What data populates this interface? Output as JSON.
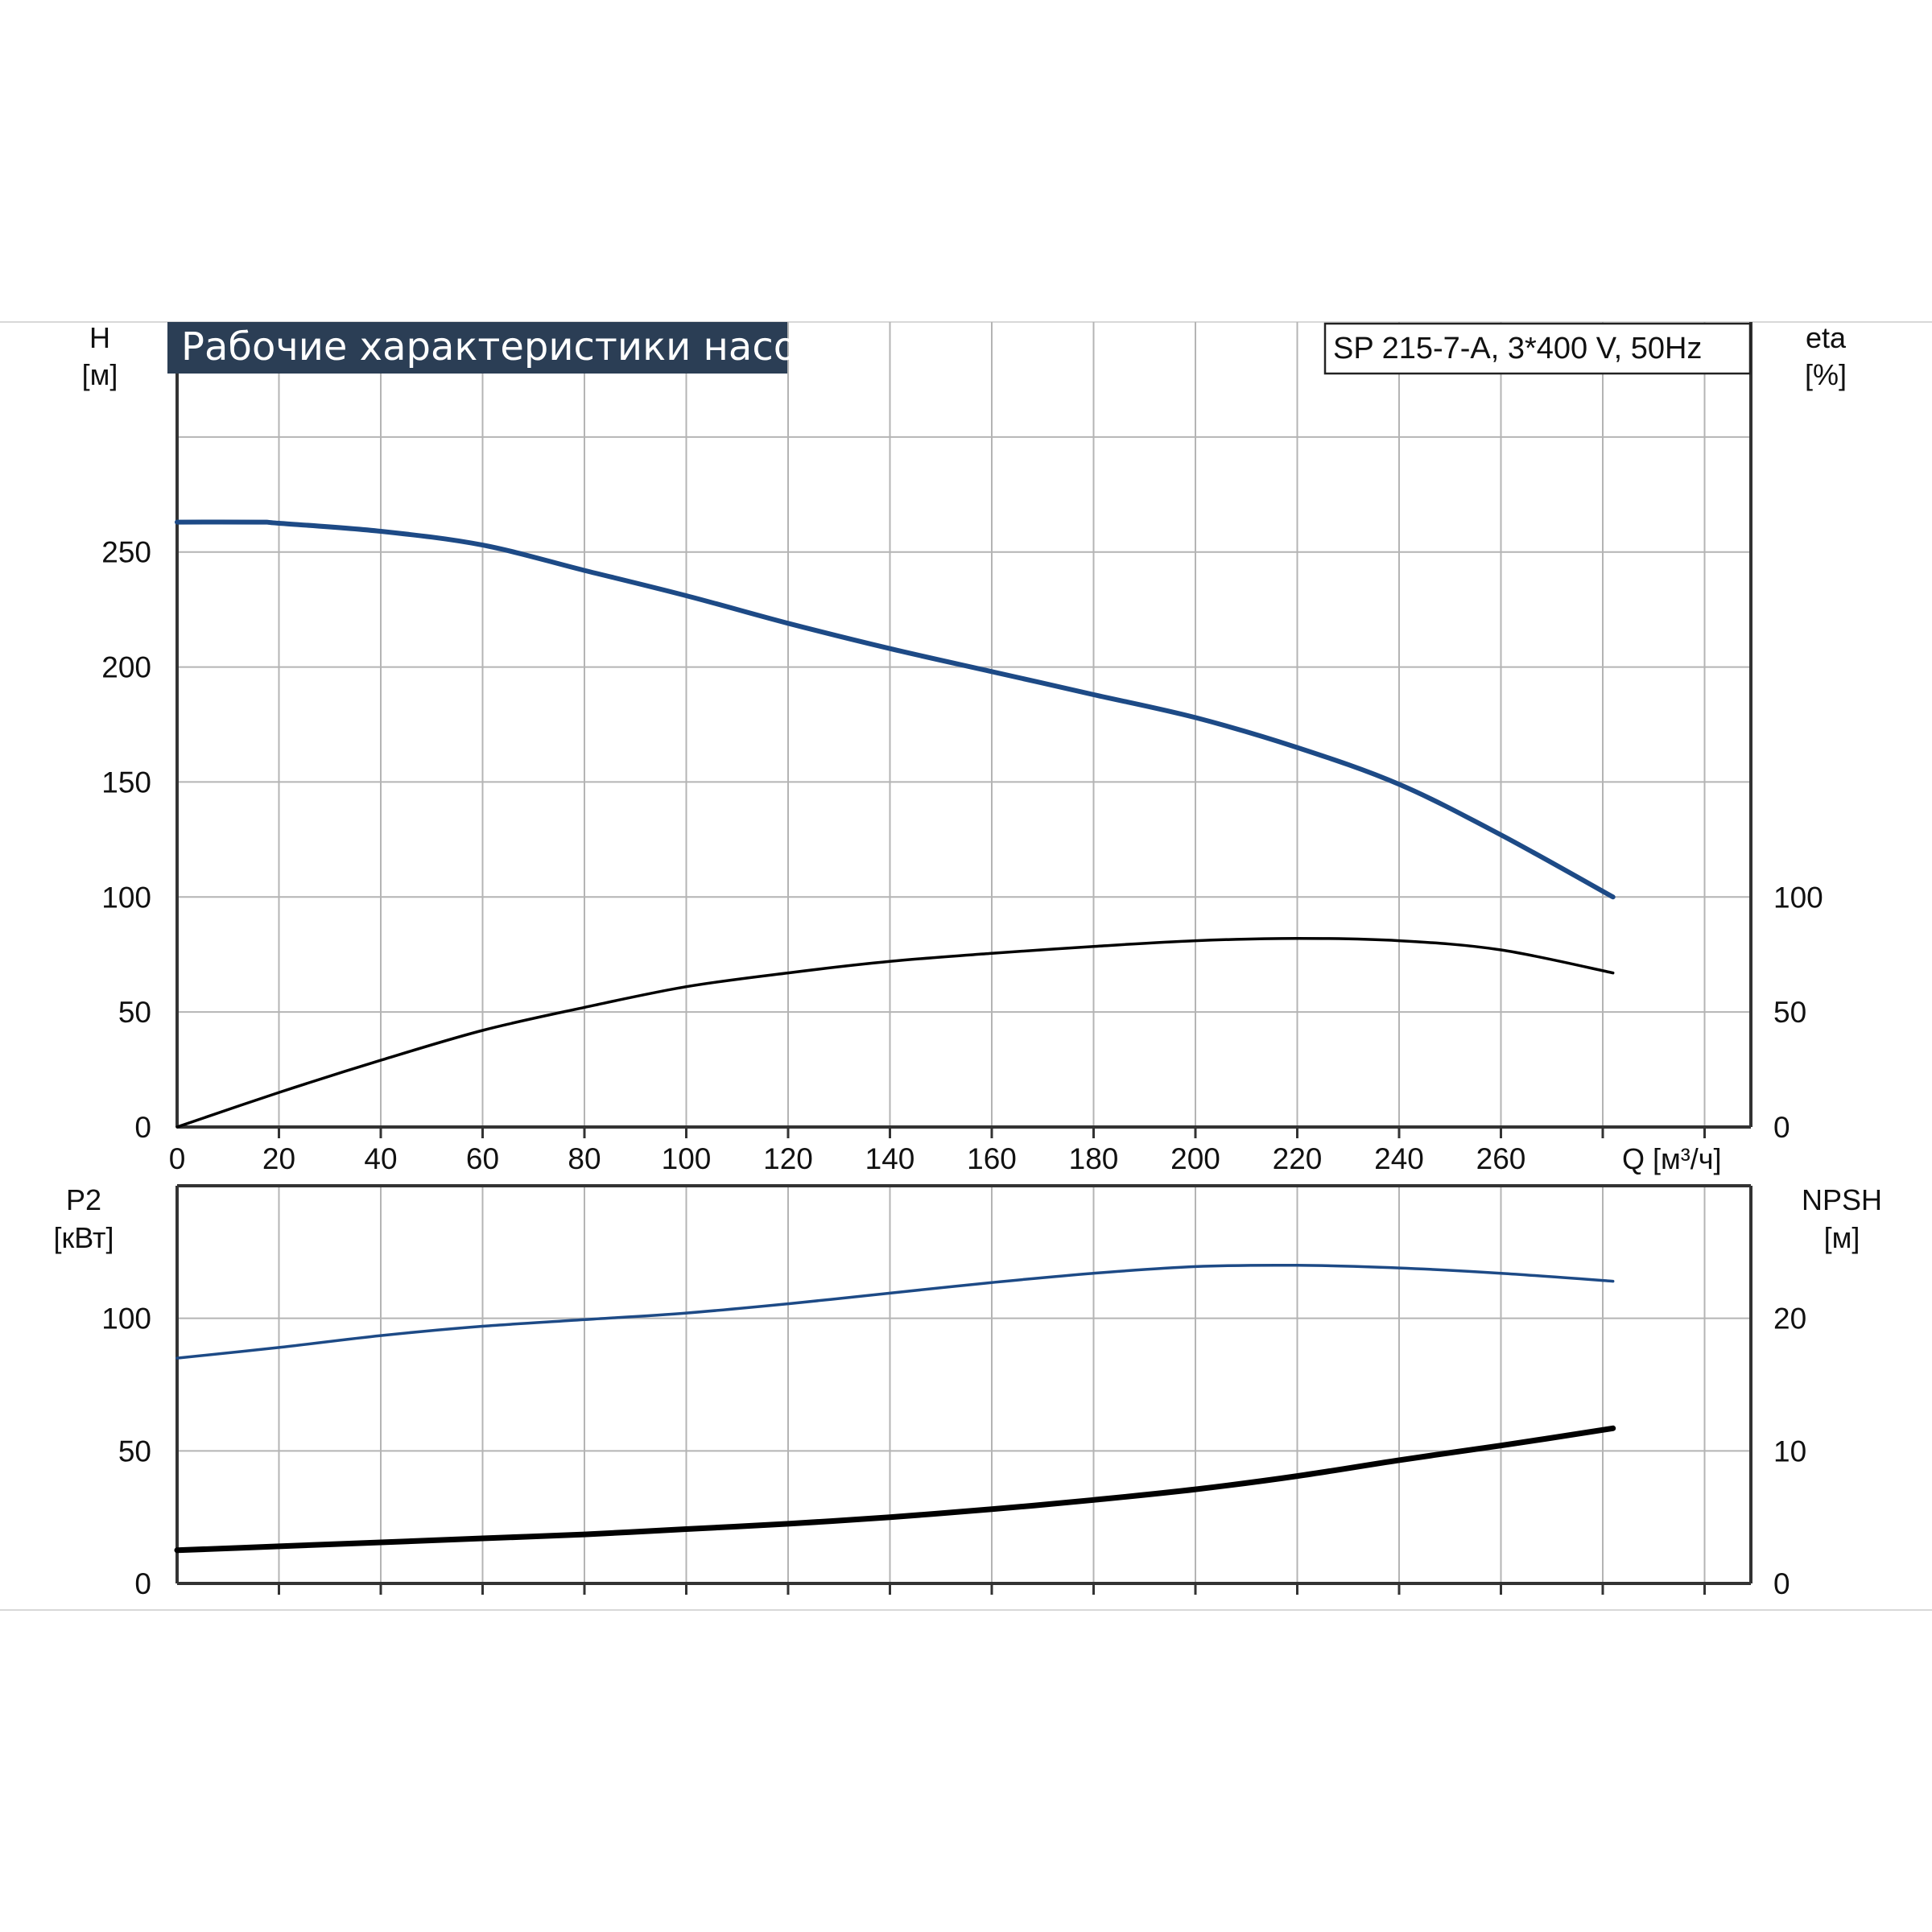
{
  "banner": {
    "title": "Рабочие характеристики насоса"
  },
  "model_label": "SP 215-7-A, 3*400 V, 50Hz",
  "colors": {
    "blue_curve": "#1d4a86",
    "black_curve": "#000000",
    "grid": "#b4b4b4",
    "banner_bg": "#2b3e55"
  },
  "axes": {
    "top_left": {
      "label": "H",
      "unit": "[м]",
      "ticks": [
        0,
        50,
        100,
        150,
        200,
        250
      ]
    },
    "top_right": {
      "label": "eta",
      "unit": "[%]",
      "ticks": [
        0,
        50,
        100
      ]
    },
    "x": {
      "label": "Q [м³/ч]",
      "ticks": [
        0,
        20,
        40,
        60,
        80,
        100,
        120,
        140,
        160,
        180,
        200,
        220,
        240,
        260
      ]
    },
    "bottom_left": {
      "label": "P2",
      "unit": "[кВт]",
      "ticks": [
        0,
        50,
        100
      ]
    },
    "bottom_right": {
      "label": "NPSH",
      "unit": "[м]",
      "ticks": [
        0,
        10,
        20
      ]
    }
  },
  "chart_data": [
    {
      "type": "line",
      "title": "Рабочие характеристики насоса",
      "xlabel": "Q [м³/ч]",
      "ylabel": "H [м]",
      "y2label": "eta [%]",
      "xlim": [
        0,
        310
      ],
      "ylim": [
        0,
        350
      ],
      "y2lim": [
        0,
        350
      ],
      "grid": true,
      "series": [
        {
          "axis": "left",
          "color": "#1d4a86",
          "x": [
            0,
            16,
            20,
            40,
            60,
            80,
            100,
            120,
            140,
            160,
            180,
            200,
            220,
            240,
            260,
            282
          ],
          "y": [
            263,
            263,
            262.5,
            259,
            253,
            242,
            231,
            219,
            208,
            198,
            188,
            178,
            165,
            149,
            127,
            100
          ]
        },
        {
          "axis": "right",
          "color": "#000000",
          "x": [
            0,
            20,
            40,
            60,
            80,
            100,
            120,
            140,
            160,
            180,
            200,
            220,
            240,
            260,
            282
          ],
          "y": [
            0,
            15,
            29,
            42,
            52,
            61,
            67,
            72,
            75.5,
            78.5,
            81,
            82,
            81,
            77,
            67
          ]
        }
      ]
    },
    {
      "type": "line",
      "xlabel": "Q [м³/ч]",
      "ylabel": "P2 [кВт]",
      "y2label": "NPSH [м]",
      "xlim": [
        0,
        310
      ],
      "ylim": [
        0,
        150
      ],
      "y2lim": [
        0,
        30
      ],
      "grid": true,
      "series": [
        {
          "axis": "left",
          "color": "#1d4a86",
          "x": [
            0,
            20,
            40,
            60,
            80,
            100,
            120,
            140,
            160,
            180,
            200,
            220,
            240,
            260,
            282
          ],
          "y": [
            85,
            89,
            93.5,
            97,
            99.5,
            102,
            105.5,
            109.5,
            113.5,
            117,
            119.5,
            120,
            119,
            117,
            114
          ]
        },
        {
          "axis": "right",
          "color": "#000000",
          "x": [
            0,
            20,
            40,
            60,
            80,
            100,
            120,
            140,
            160,
            180,
            200,
            220,
            240,
            260,
            282
          ],
          "y": [
            2.5,
            2.8,
            3.1,
            3.4,
            3.7,
            4.1,
            4.5,
            5.0,
            5.6,
            6.3,
            7.1,
            8.1,
            9.3,
            10.4,
            11.7
          ]
        }
      ]
    }
  ]
}
